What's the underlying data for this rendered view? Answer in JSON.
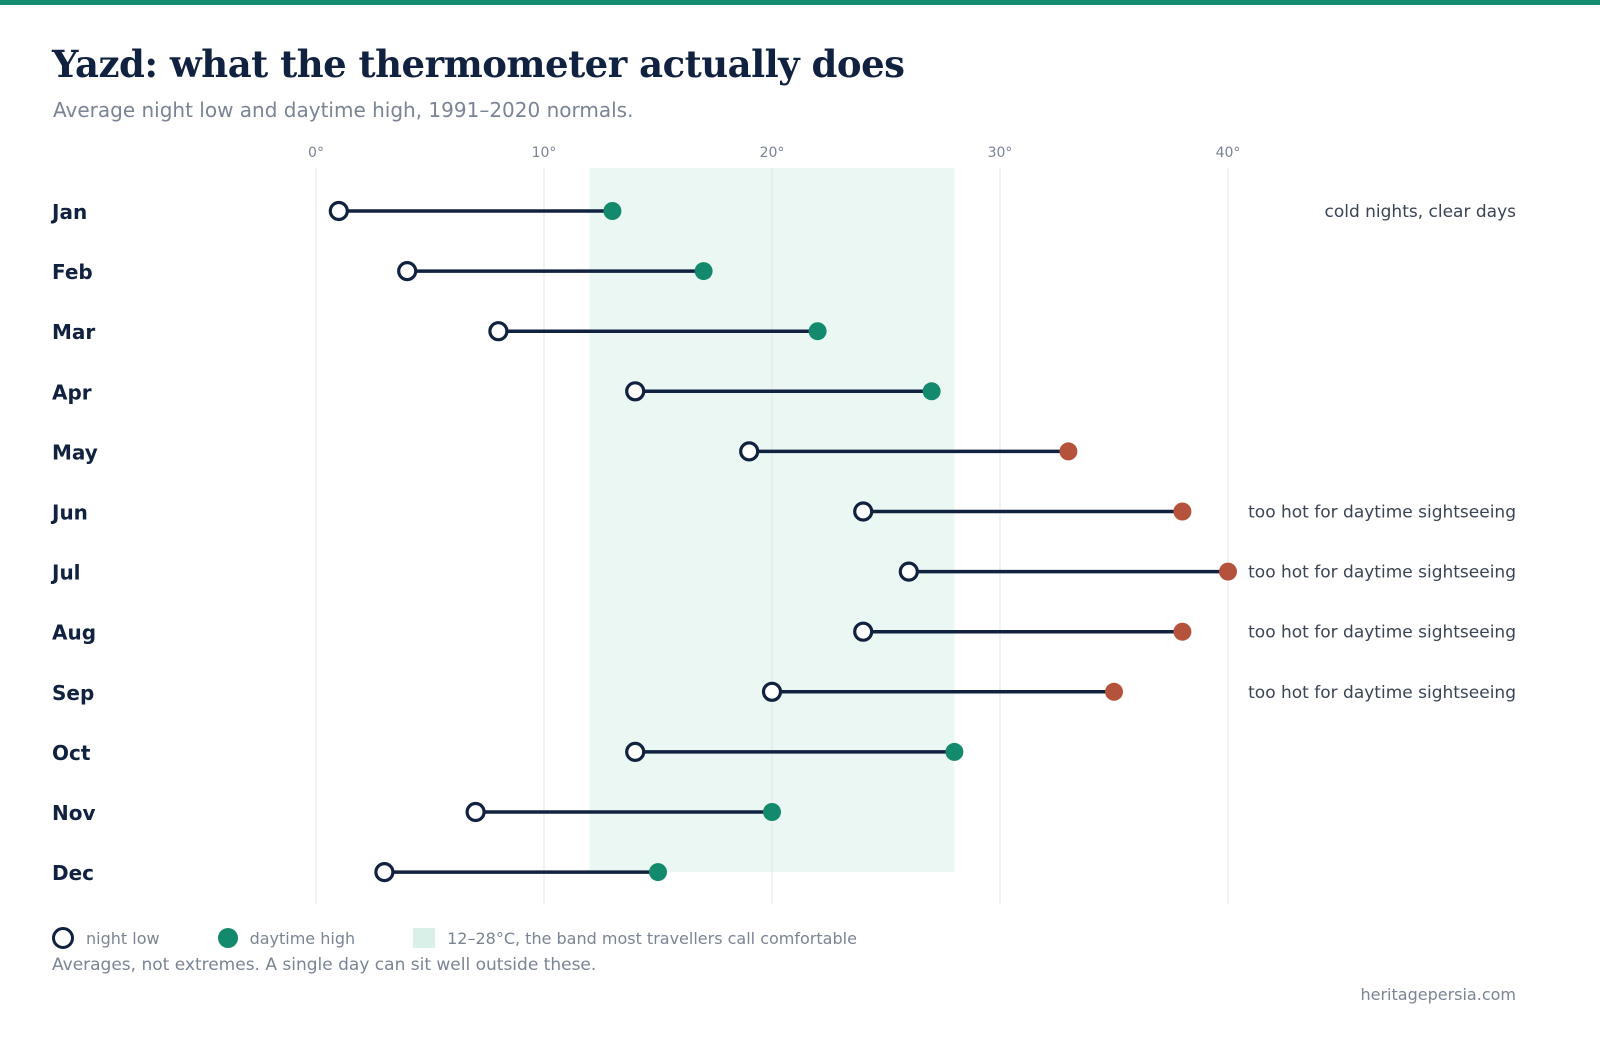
{
  "header": {
    "title": "Yazd: what the thermometer actually does",
    "subtitle": "Average night low and daytime high, 1991–2020 normals."
  },
  "legend": {
    "low_label": "night low",
    "high_label": "daytime high",
    "band_label": "12–28°C, the band most travellers call comfortable"
  },
  "footnote": "Averages, not extremes. A single day can sit well outside these.",
  "source": "heritagepersia.com",
  "colors": {
    "accent": "#138a6c",
    "hot": "#b5523b",
    "ink": "#10223f",
    "band": "#ebf7f3",
    "muted": "#7a8494"
  },
  "chart_data": {
    "type": "dumbbell",
    "x_ticks": [
      0,
      10,
      20,
      30,
      40
    ],
    "x_tick_labels": [
      "0°",
      "10°",
      "20°",
      "30°",
      "40°"
    ],
    "xlim": [
      0,
      40
    ],
    "grid": true,
    "comfort_band": [
      12,
      28
    ],
    "categories": [
      "Jan",
      "Feb",
      "Mar",
      "Apr",
      "May",
      "Jun",
      "Jul",
      "Aug",
      "Sep",
      "Oct",
      "Nov",
      "Dec"
    ],
    "series": [
      {
        "name": "night low",
        "values": [
          1,
          4,
          8,
          14,
          19,
          24,
          26,
          24,
          20,
          14,
          7,
          3
        ]
      },
      {
        "name": "daytime high",
        "values": [
          13,
          17,
          22,
          27,
          33,
          38,
          40,
          38,
          35,
          28,
          20,
          15
        ]
      }
    ],
    "hot_months": [
      "May",
      "Jun",
      "Jul",
      "Aug",
      "Sep"
    ],
    "annotations": [
      "cold nights, clear days",
      "",
      "",
      "",
      "",
      "too hot for daytime sightseeing",
      "too hot for daytime sightseeing",
      "too hot for daytime sightseeing",
      "too hot for daytime sightseeing",
      "",
      "",
      ""
    ]
  }
}
